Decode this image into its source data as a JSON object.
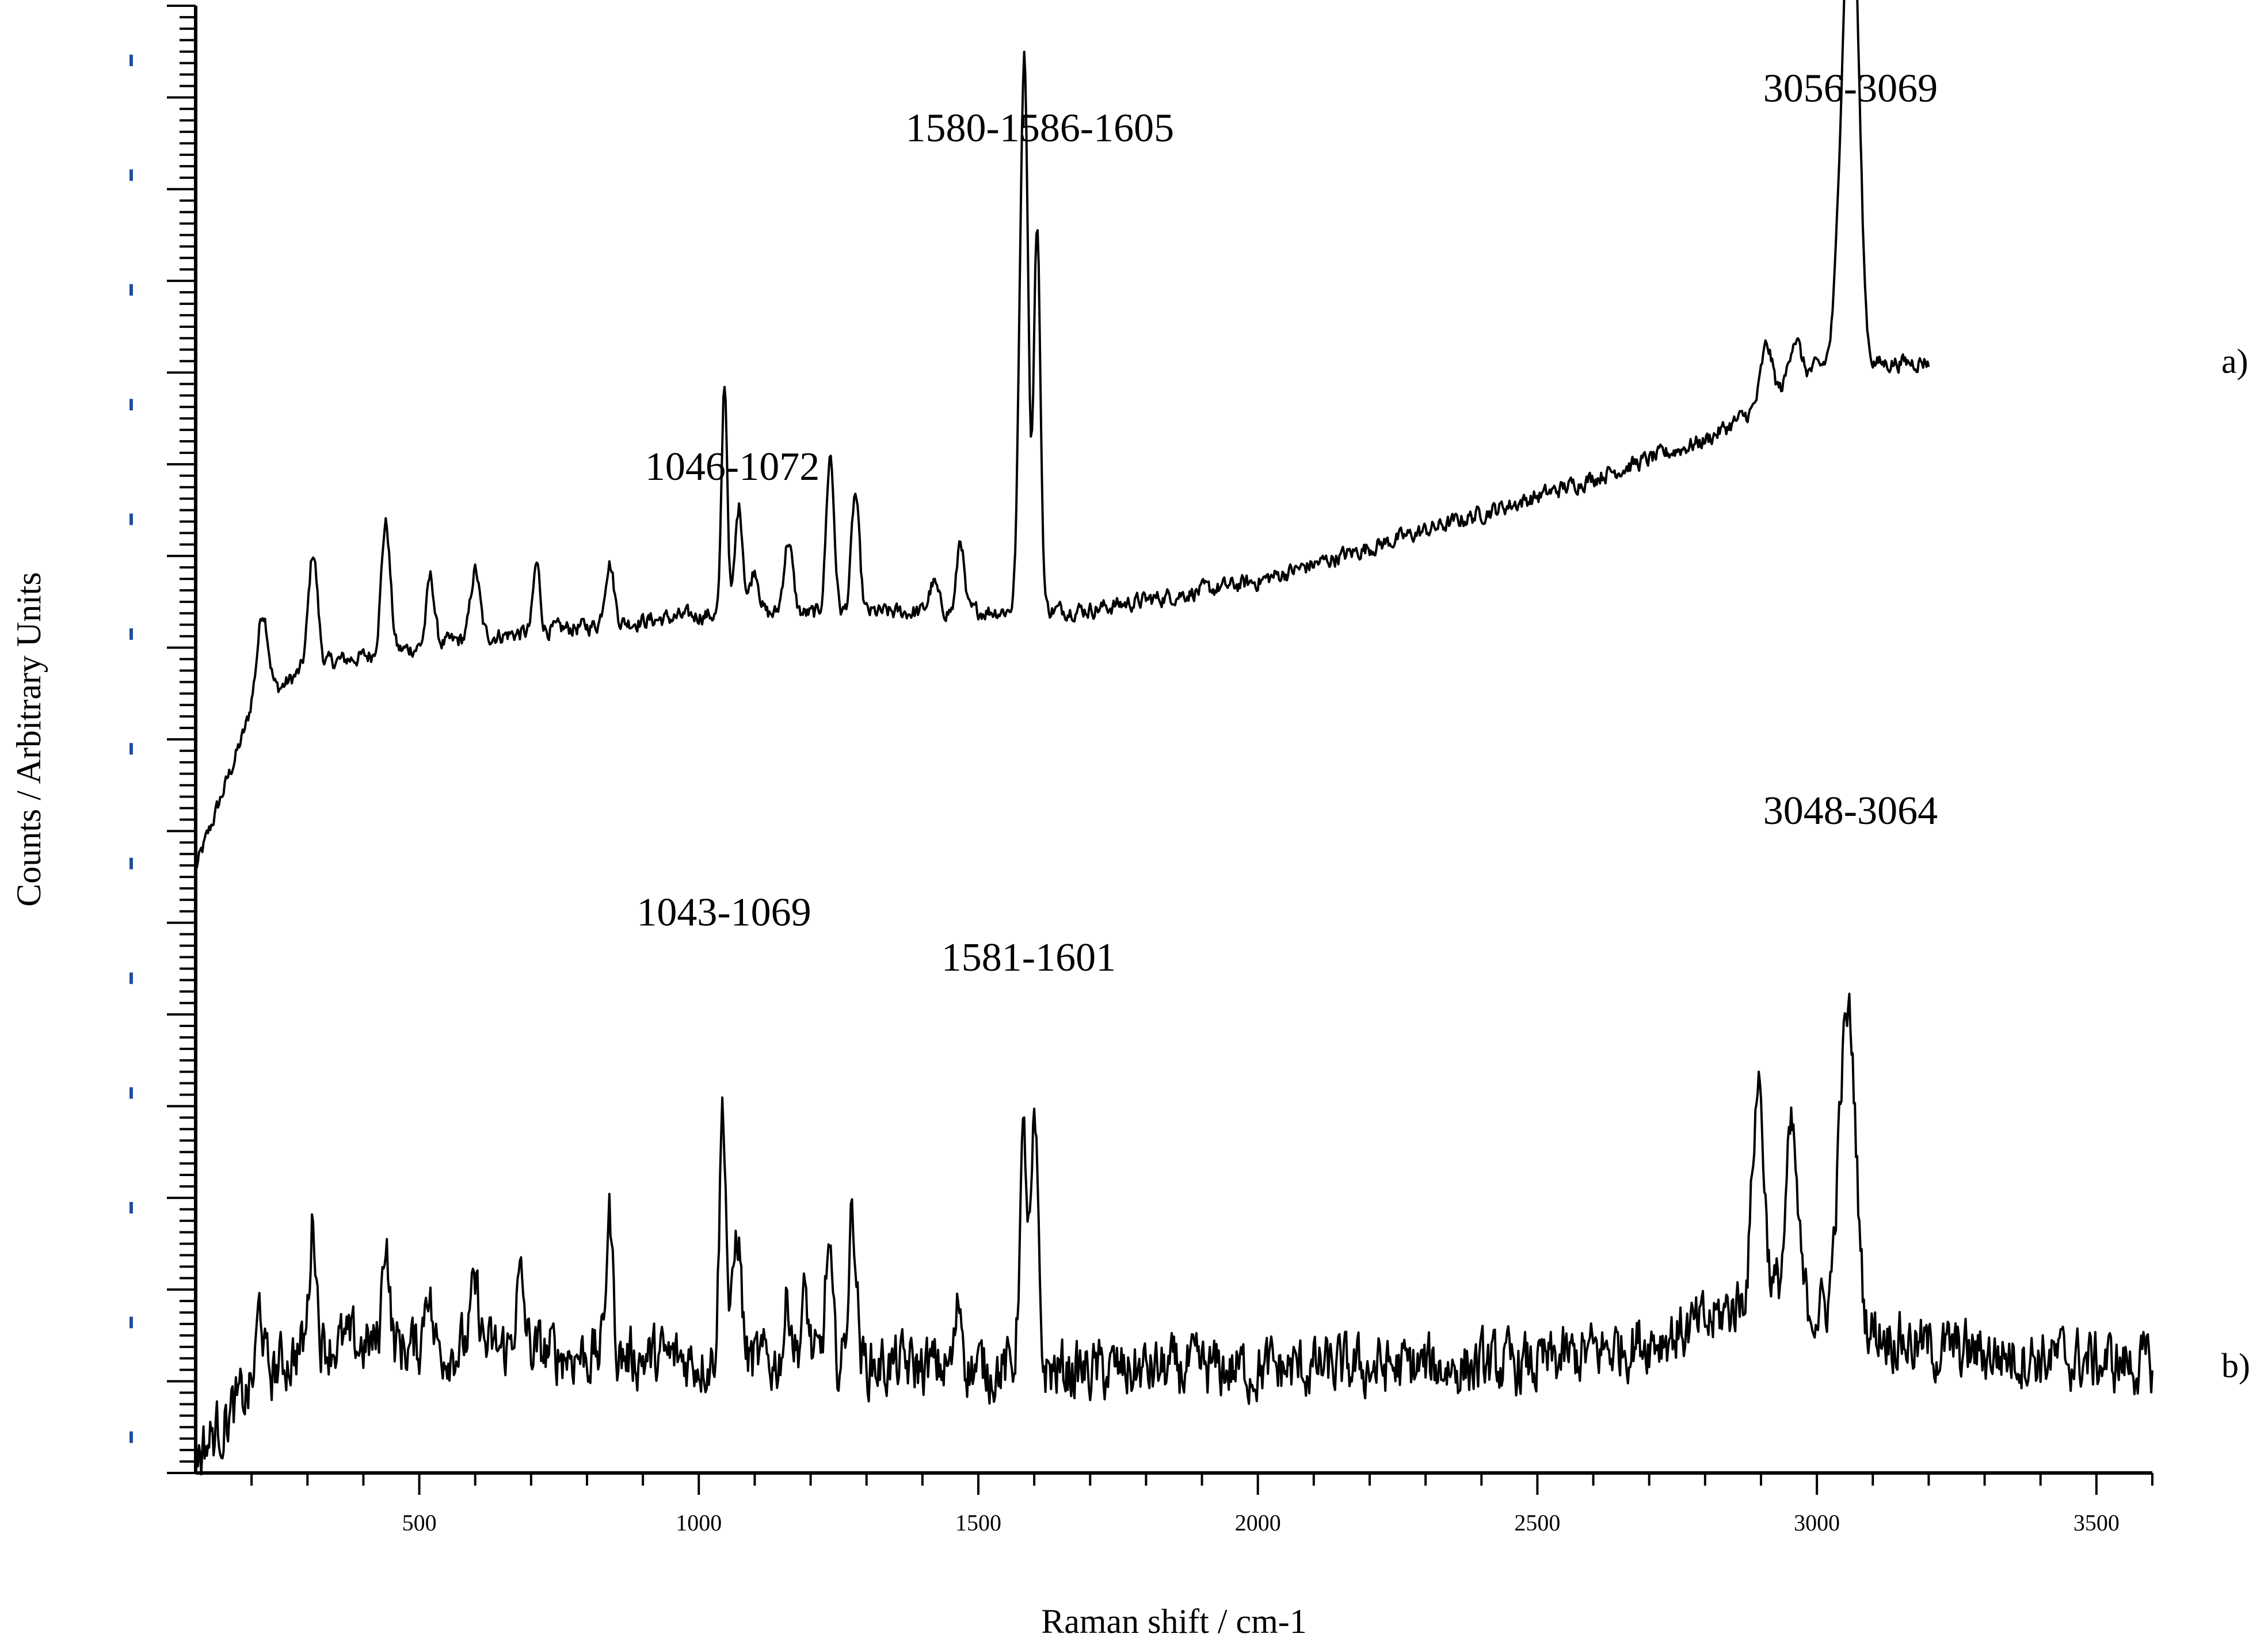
{
  "chart_data": {
    "type": "line",
    "xlabel": "Raman shift / cm-1",
    "ylabel": "Counts / Arbitrary Units",
    "xlim": [
      100,
      3600
    ],
    "x_ticks": [
      500,
      1000,
      1500,
      2000,
      2500,
      3000,
      3500
    ],
    "y_tick_labels_hidden": true,
    "grid": false,
    "colors": {
      "line": "#000000",
      "y_tick_marks": "#1f4fa0"
    },
    "series": [
      {
        "name": "a)",
        "x_range": [
          100,
          3200
        ],
        "baseline": [
          [
            100,
            10.7
          ],
          [
            200,
            13.5
          ],
          [
            300,
            14.3
          ],
          [
            600,
            14.8
          ],
          [
            1000,
            15.2
          ],
          [
            1700,
            15.3
          ],
          [
            2000,
            15.8
          ],
          [
            2500,
            17.3
          ],
          [
            2800,
            18.3
          ],
          [
            2900,
            18.9
          ],
          [
            3000,
            19.6
          ],
          [
            3200,
            19.7
          ]
        ],
        "peaks": [
          [
            220,
            1.6,
            10
          ],
          [
            310,
            2.0,
            8
          ],
          [
            440,
            2.3,
            8
          ],
          [
            520,
            1.2,
            7
          ],
          [
            600,
            1.2,
            8
          ],
          [
            710,
            1.2,
            6
          ],
          [
            840,
            1.1,
            8
          ],
          [
            1046,
            4.1,
            5
          ],
          [
            1072,
            1.9,
            7
          ],
          [
            1100,
            0.8,
            8
          ],
          [
            1160,
            1.3,
            8
          ],
          [
            1235,
            2.8,
            7
          ],
          [
            1280,
            2.1,
            7
          ],
          [
            1420,
            0.5,
            8
          ],
          [
            1468,
            1.3,
            6
          ],
          [
            1580,
            8.0,
            7
          ],
          [
            1586,
            3.0,
            5
          ],
          [
            1605,
            6.8,
            6
          ],
          [
            2910,
            1.0,
            10
          ],
          [
            2960,
            0.8,
            10
          ],
          [
            3056,
            7.1,
            14
          ],
          [
            3069,
            3.0,
            10
          ]
        ],
        "noise": 0.25
      },
      {
        "name": "b)",
        "x_range": [
          100,
          3600
        ],
        "baseline": [
          [
            100,
            0.3
          ],
          [
            200,
            1.5
          ],
          [
            300,
            2.3
          ],
          [
            600,
            2.2
          ],
          [
            1000,
            2.0
          ],
          [
            1700,
            1.8
          ],
          [
            2500,
            1.9
          ],
          [
            2800,
            2.6
          ],
          [
            2900,
            3.3
          ],
          [
            3000,
            2.9
          ],
          [
            3200,
            2.2
          ],
          [
            3600,
            1.9
          ]
        ],
        "peaks": [
          [
            215,
            1.3,
            6
          ],
          [
            310,
            2.2,
            6
          ],
          [
            440,
            2.0,
            6
          ],
          [
            515,
            1.2,
            6
          ],
          [
            600,
            1.0,
            8
          ],
          [
            680,
            1.2,
            8
          ],
          [
            840,
            2.5,
            6
          ],
          [
            1043,
            4.5,
            6
          ],
          [
            1069,
            2.3,
            7
          ],
          [
            1160,
            1.1,
            7
          ],
          [
            1190,
            1.1,
            7
          ],
          [
            1232,
            2.0,
            6
          ],
          [
            1275,
            2.7,
            7
          ],
          [
            1466,
            1.2,
            6
          ],
          [
            1581,
            4.0,
            7
          ],
          [
            1601,
            4.1,
            6
          ],
          [
            2895,
            3.7,
            10
          ],
          [
            2955,
            2.9,
            10
          ],
          [
            3048,
            4.0,
            12
          ],
          [
            3064,
            3.0,
            10
          ]
        ],
        "noise": 0.9
      }
    ],
    "annotations": [
      {
        "text": "1046-1072",
        "x": 1060,
        "y": 17.6,
        "series": "a)"
      },
      {
        "text": "1580-1586-1605",
        "x": 1610,
        "y": 23.6,
        "series": "a)"
      },
      {
        "text": "3056-3069",
        "x": 3060,
        "y": 24.3,
        "series": "a)"
      },
      {
        "text": "1043-1069",
        "x": 1045,
        "y": 9.7,
        "series": "b)"
      },
      {
        "text": "1581-1601",
        "x": 1590,
        "y": 8.9,
        "series": "b)"
      },
      {
        "text": "3048-3064",
        "x": 3060,
        "y": 11.5,
        "series": "b)"
      }
    ]
  }
}
